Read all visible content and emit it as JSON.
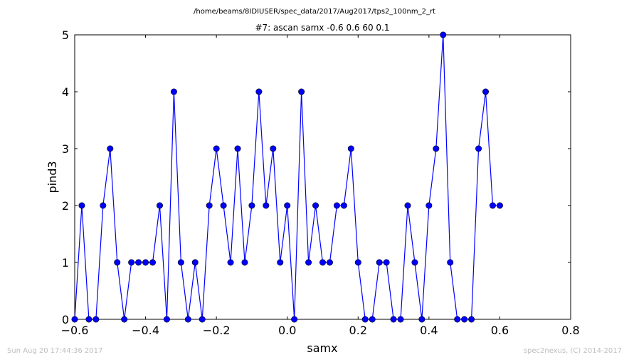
{
  "figure": {
    "suptitle": "/home/beams/8IDIUSER/spec_data/2017/Aug2017/tps2_100nm_2_rt",
    "timestamp": "Sun Aug 20 17:44:36 2017",
    "credit": "spec2nexus, (C) 2014-2017"
  },
  "chart_data": {
    "type": "line",
    "title": "#7: ascan  samx -0.6 0.6  60 0.1",
    "xlabel": "samx",
    "ylabel": "pind3",
    "xlim": [
      -0.6,
      0.8
    ],
    "ylim": [
      0,
      5
    ],
    "xticks": [
      "−0.6",
      "−0.4",
      "−0.2",
      "0.0",
      "0.2",
      "0.4",
      "0.6",
      "0.8"
    ],
    "yticks": [
      "0",
      "1",
      "2",
      "3",
      "4",
      "5"
    ],
    "grid": false,
    "series": [
      {
        "color": "#0000ff",
        "marker": "circle",
        "x": [
          -0.6,
          -0.58,
          -0.56,
          -0.54,
          -0.52,
          -0.5,
          -0.48,
          -0.46,
          -0.44,
          -0.42,
          -0.4,
          -0.38,
          -0.36,
          -0.34,
          -0.32,
          -0.3,
          -0.28,
          -0.26,
          -0.24,
          -0.22,
          -0.2,
          -0.18,
          -0.16,
          -0.14,
          -0.12,
          -0.1,
          -0.08,
          -0.06,
          -0.04,
          -0.02,
          0.0,
          0.02,
          0.04,
          0.06,
          0.08,
          0.1,
          0.12,
          0.14,
          0.16,
          0.18,
          0.2,
          0.22,
          0.24,
          0.26,
          0.28,
          0.3,
          0.32,
          0.34,
          0.36,
          0.38,
          0.4,
          0.42,
          0.44,
          0.46,
          0.48,
          0.5,
          0.52,
          0.54,
          0.56,
          0.58,
          0.6
        ],
        "y": [
          0,
          2,
          0,
          0,
          2,
          3,
          1,
          0,
          1,
          1,
          1,
          1,
          2,
          0,
          4,
          1,
          0,
          1,
          0,
          2,
          3,
          2,
          1,
          3,
          1,
          2,
          4,
          2,
          3,
          1,
          2,
          0,
          4,
          1,
          2,
          1,
          1,
          2,
          2,
          3,
          1,
          0,
          0,
          1,
          1,
          0,
          0,
          2,
          1,
          0,
          2,
          3,
          5,
          1,
          0,
          0,
          0,
          3,
          4,
          2,
          2
        ]
      }
    ]
  }
}
